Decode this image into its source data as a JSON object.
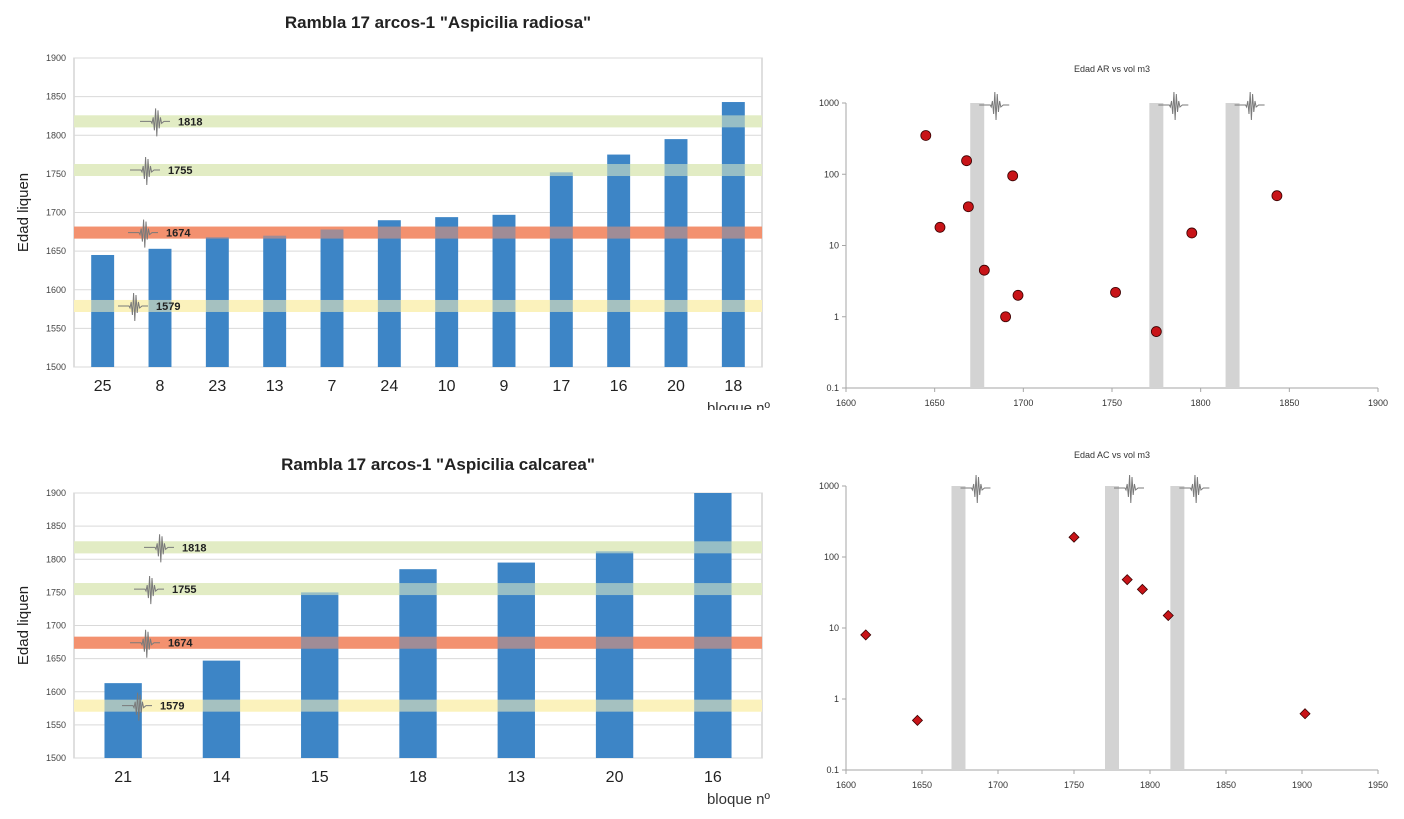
{
  "colors": {
    "bar": "#3d85c6",
    "band_green": "#e2ecc4",
    "band_red": "#f3916f",
    "band_yellow": "#fbf2bc",
    "marker": "#c81418",
    "event_bar": "#d3d3d3",
    "axis": "#a6a6a6"
  },
  "chart_data": [
    {
      "type": "bar",
      "title": "Rambla 17 arcos-1 \"Aspicilia radiosa\"",
      "ylabel": "Edad liquen",
      "xlabel": "bloque nº",
      "ylim": [
        1500,
        1900
      ],
      "yticks": [
        "1500",
        "1550",
        "1600",
        "1650",
        "1700",
        "1750",
        "1800",
        "1850",
        "1900"
      ],
      "categories": [
        "25",
        "8",
        "23",
        "13",
        "7",
        "24",
        "10",
        "9",
        "17",
        "16",
        "20",
        "18"
      ],
      "values": [
        1645,
        1653,
        1668,
        1670,
        1678,
        1690,
        1694,
        1697,
        1752,
        1775,
        1795,
        1843
      ],
      "grid": true,
      "bands": [
        {
          "value": 1818,
          "label": "1818",
          "color": "green"
        },
        {
          "value": 1755,
          "label": "1755",
          "color": "green"
        },
        {
          "value": 1674,
          "label": "1674",
          "color": "red"
        },
        {
          "value": 1579,
          "label": "1579",
          "color": "yellow"
        }
      ]
    },
    {
      "type": "scatter",
      "title": "Edad AR vs vol m3",
      "xlim": [
        1600,
        1900
      ],
      "ylim": [
        0.1,
        1000
      ],
      "yscale": "log",
      "xticks": [
        "1600",
        "1650",
        "1700",
        "1750",
        "1800",
        "1850",
        "1900"
      ],
      "yticks": [
        "0.1",
        "1",
        "10",
        "100",
        "1000"
      ],
      "marker": "circle",
      "events": [
        1674,
        1775,
        1818
      ],
      "points": [
        {
          "x": 1645,
          "y": 350
        },
        {
          "x": 1653,
          "y": 18
        },
        {
          "x": 1668,
          "y": 155
        },
        {
          "x": 1669,
          "y": 35
        },
        {
          "x": 1678,
          "y": 4.5
        },
        {
          "x": 1690,
          "y": 1.0
        },
        {
          "x": 1694,
          "y": 95
        },
        {
          "x": 1697,
          "y": 2.0
        },
        {
          "x": 1752,
          "y": 2.2
        },
        {
          "x": 1775,
          "y": 0.62
        },
        {
          "x": 1795,
          "y": 15
        },
        {
          "x": 1843,
          "y": 50
        }
      ]
    },
    {
      "type": "bar",
      "title": "Rambla 17 arcos-1 \"Aspicilia calcarea\"",
      "ylabel": "Edad liquen",
      "xlabel": "bloque nº",
      "ylim": [
        1500,
        1900
      ],
      "yticks": [
        "1500",
        "1550",
        "1600",
        "1650",
        "1700",
        "1750",
        "1800",
        "1850",
        "1900"
      ],
      "categories": [
        "21",
        "14",
        "15",
        "18",
        "13",
        "20",
        "16"
      ],
      "values": [
        1613,
        1647,
        1750,
        1785,
        1795,
        1812,
        1902
      ],
      "grid": true,
      "bands": [
        {
          "value": 1818,
          "label": "1818",
          "color": "green"
        },
        {
          "value": 1755,
          "label": "1755",
          "color": "green"
        },
        {
          "value": 1674,
          "label": "1674",
          "color": "red"
        },
        {
          "value": 1579,
          "label": "1579",
          "color": "yellow"
        }
      ]
    },
    {
      "type": "scatter",
      "title": "Edad AC vs vol m3",
      "xlim": [
        1600,
        1950
      ],
      "ylim": [
        0.1,
        1000
      ],
      "yscale": "log",
      "xticks": [
        "1600",
        "1650",
        "1700",
        "1750",
        "1800",
        "1850",
        "1900",
        "1950"
      ],
      "yticks": [
        "0.1",
        "1",
        "10",
        "100",
        "1000"
      ],
      "marker": "diamond",
      "events": [
        1674,
        1775,
        1818
      ],
      "points": [
        {
          "x": 1613,
          "y": 8
        },
        {
          "x": 1647,
          "y": 0.5
        },
        {
          "x": 1750,
          "y": 190
        },
        {
          "x": 1785,
          "y": 48
        },
        {
          "x": 1795,
          "y": 35
        },
        {
          "x": 1812,
          "y": 15
        },
        {
          "x": 1902,
          "y": 0.62
        }
      ]
    }
  ]
}
